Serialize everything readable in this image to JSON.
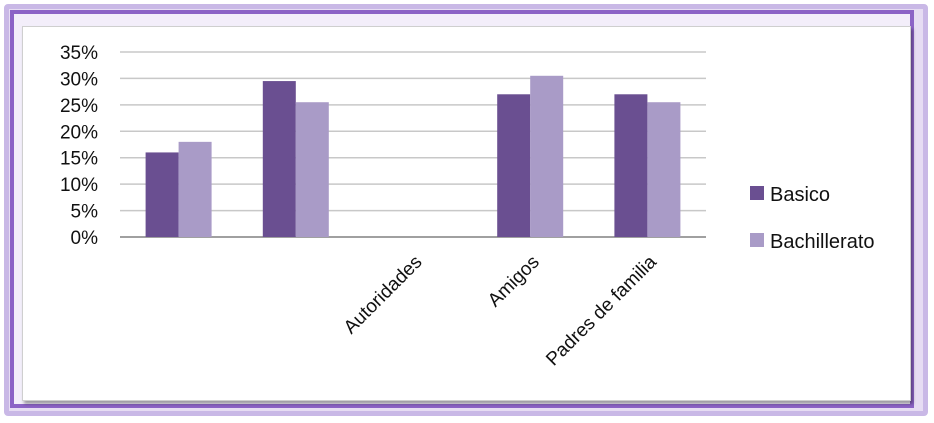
{
  "chart_data": {
    "type": "bar",
    "categories": [
      "",
      "",
      "Autoridades",
      "Amigos",
      "Padres de familia"
    ],
    "series": [
      {
        "name": "Basico",
        "values": [
          0.16,
          0.295,
          null,
          0.27,
          0.27
        ],
        "color": "#6a4f91"
      },
      {
        "name": "Bachillerato",
        "values": [
          0.18,
          0.255,
          null,
          0.305,
          0.255
        ],
        "color": "#a99bc7"
      }
    ],
    "yticks": [
      "0%",
      "5%",
      "10%",
      "15%",
      "20%",
      "25%",
      "30%",
      "35%"
    ],
    "ylim": [
      0,
      0.35
    ],
    "grid": true,
    "legend_position": "right",
    "title": "",
    "xlabel": "",
    "ylabel": ""
  },
  "colors": {
    "frame_outer": "#c9b8e6",
    "frame_inner": "#8c63c6",
    "grid": "#c8c8c8"
  }
}
